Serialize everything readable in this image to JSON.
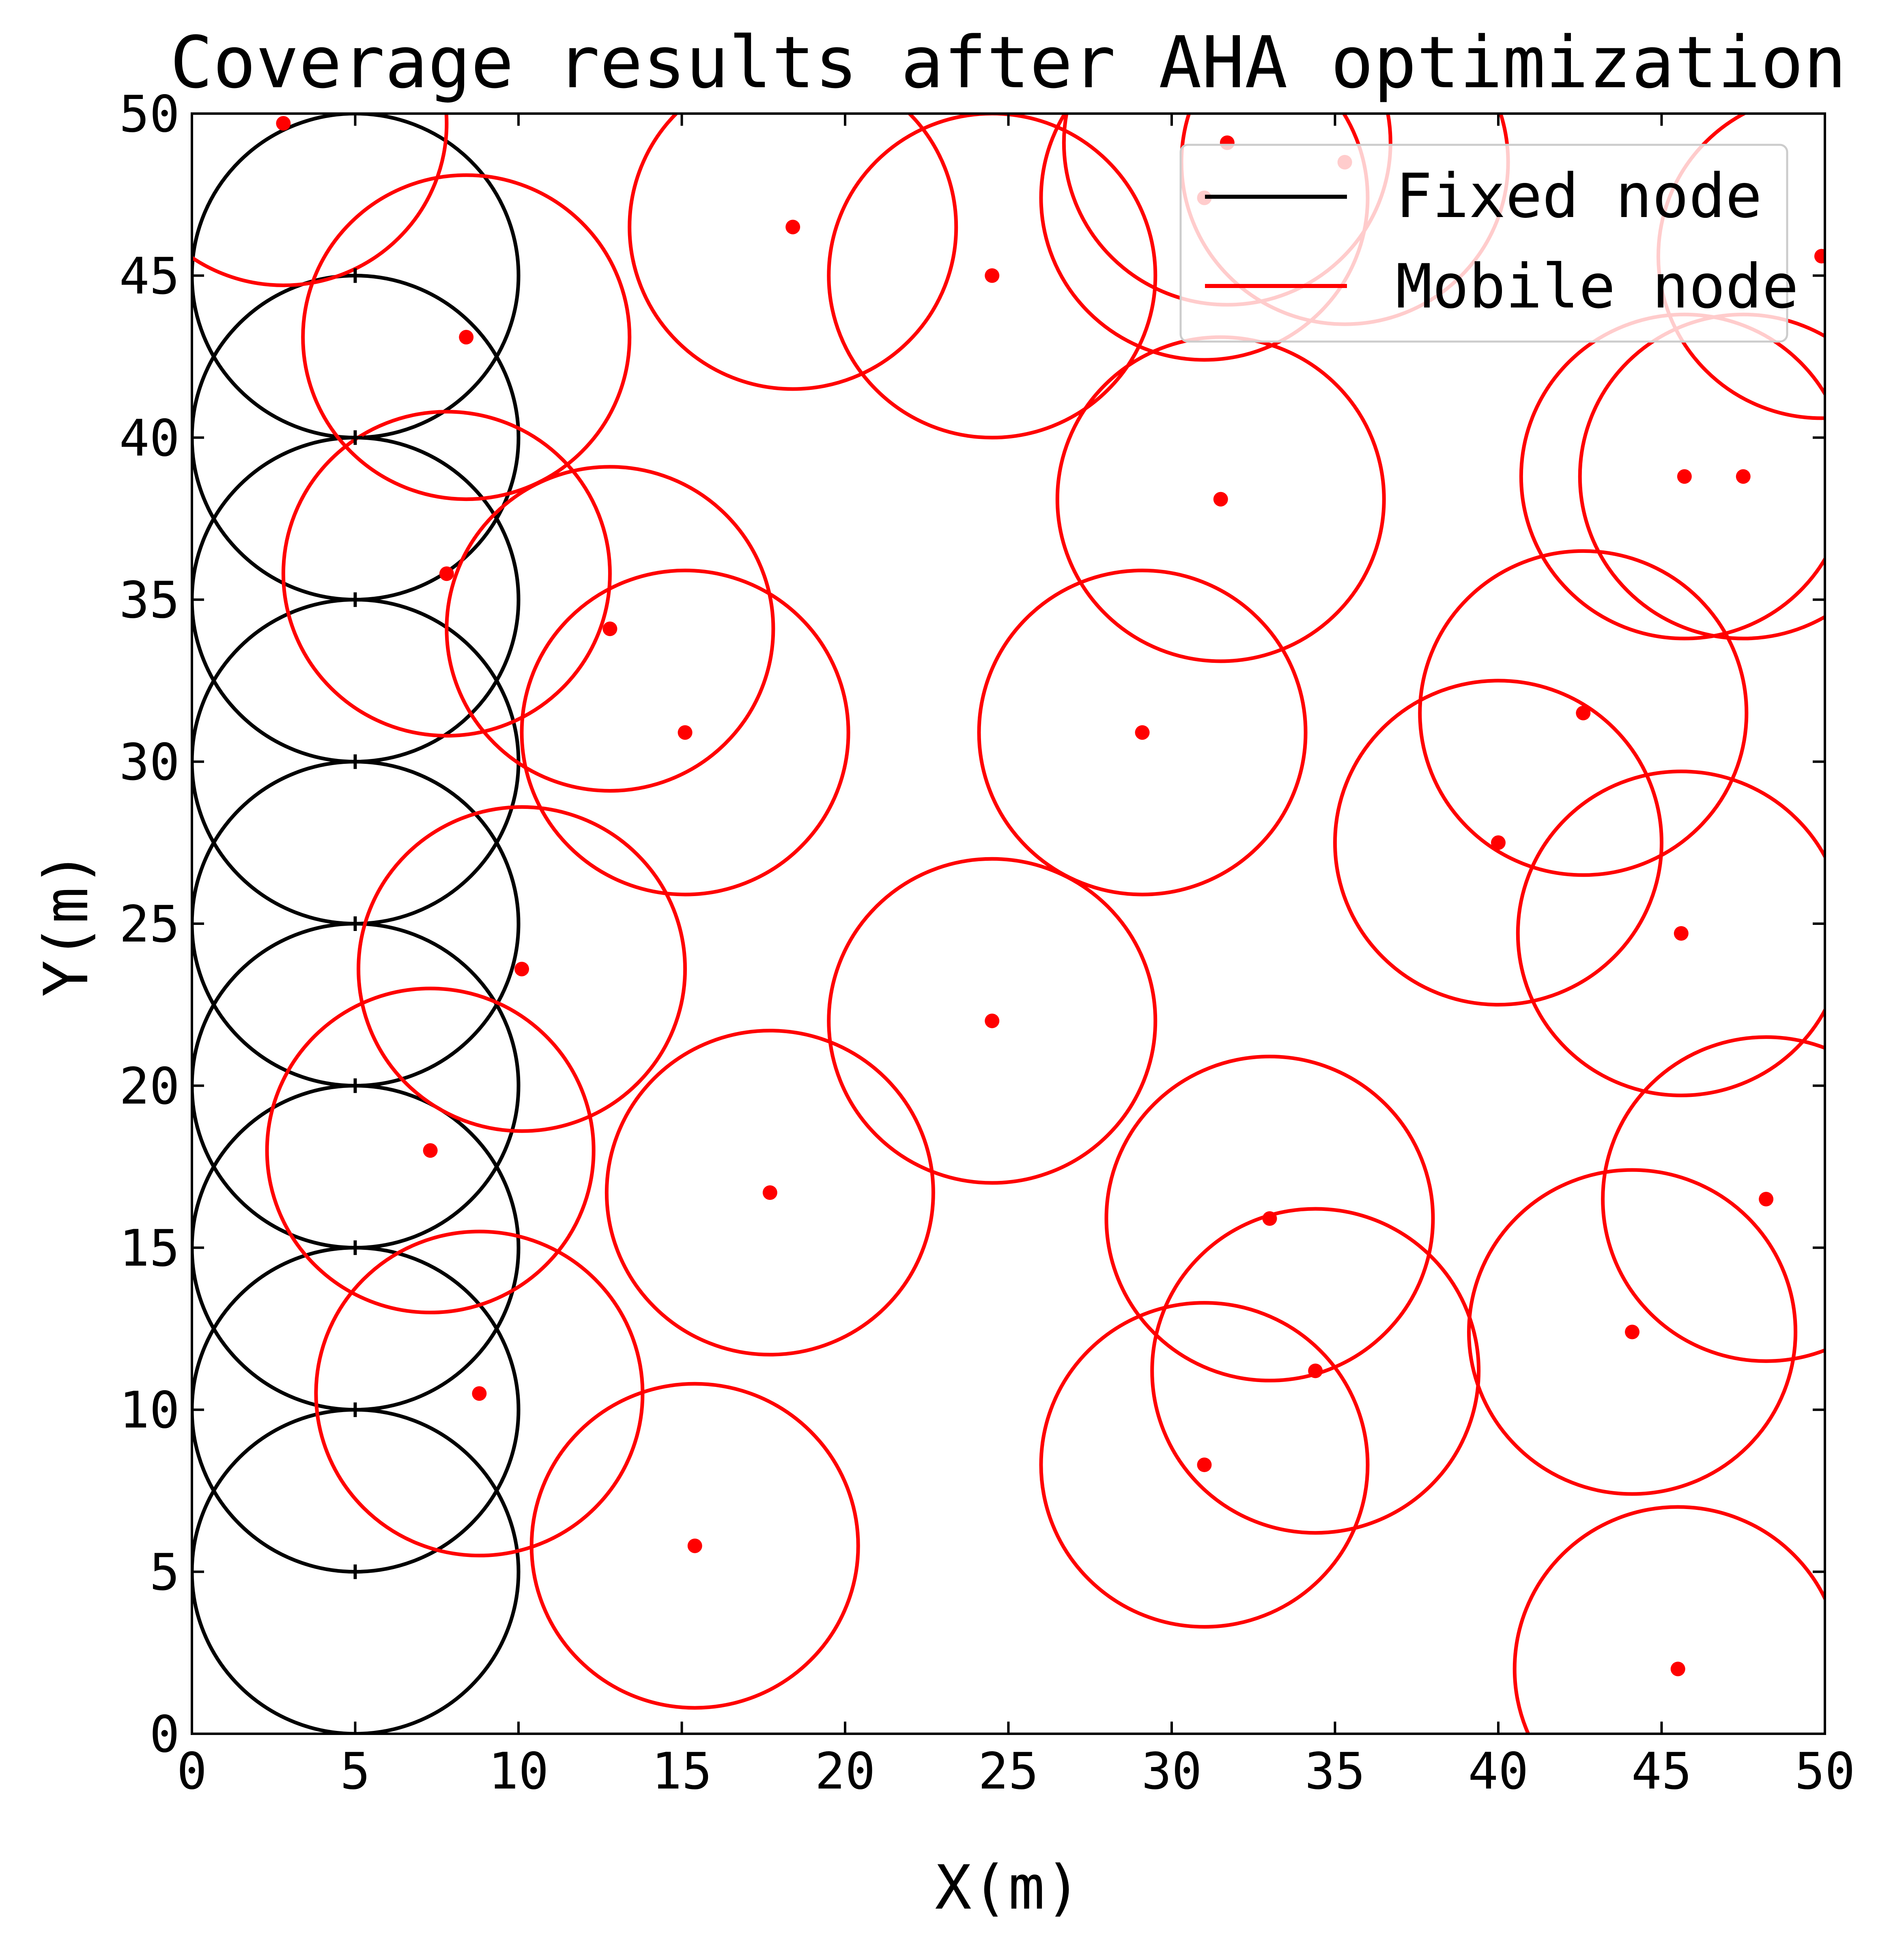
{
  "chart_data": {
    "type": "scatter",
    "title": "Coverage results after AHA optimization",
    "xlabel": "X(m)",
    "ylabel": "Y(m)",
    "xlim": [
      0,
      50
    ],
    "ylim": [
      0,
      50
    ],
    "xticks": [
      0,
      5,
      10,
      15,
      20,
      25,
      30,
      35,
      40,
      45,
      50
    ],
    "yticks": [
      0,
      5,
      10,
      15,
      20,
      25,
      30,
      35,
      40,
      45,
      50
    ],
    "tick_direction": "in",
    "grid": false,
    "legend": {
      "position": "top-right",
      "entries": [
        {
          "label": "Fixed node",
          "color": "#000000"
        },
        {
          "label": "Mobile node",
          "color": "#ff0000"
        }
      ]
    },
    "sensing_radius": 5,
    "series": [
      {
        "name": "Fixed node",
        "color": "#000000",
        "marker": "+",
        "points": [
          [
            5,
            5
          ],
          [
            5,
            10
          ],
          [
            5,
            15
          ],
          [
            5,
            20
          ],
          [
            5,
            25
          ],
          [
            5,
            30
          ],
          [
            5,
            35
          ],
          [
            5,
            40
          ],
          [
            5,
            45
          ]
        ]
      },
      {
        "name": "Mobile node",
        "color": "#ff0000",
        "marker": "dot",
        "points": [
          [
            2.8,
            49.7
          ],
          [
            8.4,
            43.1
          ],
          [
            7.8,
            35.8
          ],
          [
            12.8,
            34.1
          ],
          [
            15.1,
            30.9
          ],
          [
            10.1,
            23.6
          ],
          [
            7.3,
            18.0
          ],
          [
            8.8,
            10.5
          ],
          [
            15.4,
            5.8
          ],
          [
            17.7,
            16.7
          ],
          [
            18.4,
            46.5
          ],
          [
            24.5,
            45.0
          ],
          [
            24.5,
            22.0
          ],
          [
            29.1,
            30.9
          ],
          [
            31.5,
            38.1
          ],
          [
            31.0,
            47.4
          ],
          [
            31.7,
            49.1
          ],
          [
            35.3,
            48.5
          ],
          [
            33.0,
            15.9
          ],
          [
            34.4,
            11.2
          ],
          [
            31.0,
            8.3
          ],
          [
            40.0,
            27.5
          ],
          [
            42.6,
            31.5
          ],
          [
            45.6,
            24.7
          ],
          [
            44.1,
            12.4
          ],
          [
            48.2,
            16.5
          ],
          [
            45.7,
            38.8
          ],
          [
            47.5,
            38.8
          ],
          [
            49.9,
            45.6
          ],
          [
            45.5,
            2.0
          ]
        ]
      }
    ]
  }
}
